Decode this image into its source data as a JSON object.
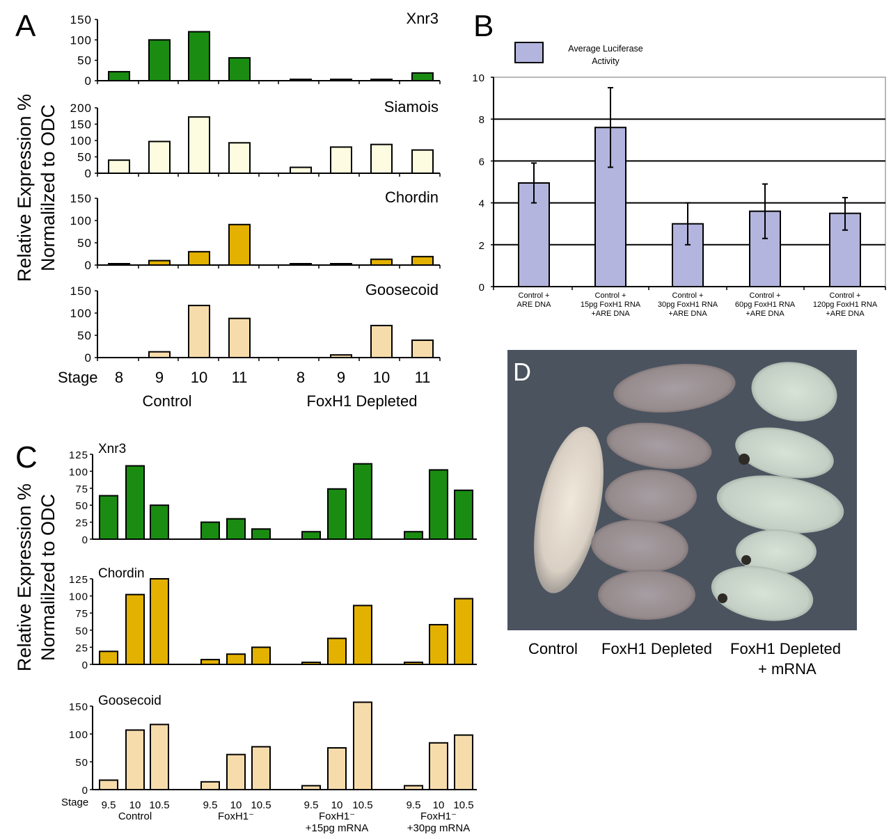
{
  "chart_data": [
    {
      "panel": "A",
      "type": "bar",
      "ylabel": "Relative Expression % Normalilzed to ODC",
      "xlabel_prefix": "Stage",
      "categories": [
        "8",
        "9",
        "10",
        "11",
        "8",
        "9",
        "10",
        "11"
      ],
      "groups": [
        "Control",
        "FoxH1 Depleted"
      ],
      "subplots": [
        {
          "title": "Xnr3",
          "color": "#1a8c12",
          "ylim": [
            0,
            150
          ],
          "yticks": [
            0,
            50,
            100,
            150
          ],
          "values": [
            22,
            100,
            120,
            56,
            2,
            2,
            2,
            19
          ]
        },
        {
          "title": "Siamois",
          "color": "#fdfce0",
          "ylim": [
            0,
            200
          ],
          "yticks": [
            0,
            50,
            100,
            150,
            200
          ],
          "values": [
            40,
            97,
            172,
            93,
            18,
            80,
            88,
            71
          ]
        },
        {
          "title": "Chordin",
          "color": "#e3b100",
          "ylim": [
            0,
            150
          ],
          "yticks": [
            0,
            50,
            100,
            150
          ],
          "values": [
            2,
            10,
            30,
            91,
            2,
            2,
            13,
            19
          ]
        },
        {
          "title": "Goosecoid",
          "color": "#f7dcab",
          "ylim": [
            0,
            150
          ],
          "yticks": [
            0,
            50,
            100,
            150
          ],
          "values": [
            0,
            13,
            117,
            88,
            0,
            6,
            72,
            39
          ]
        }
      ]
    },
    {
      "panel": "B",
      "type": "bar",
      "legend": "Average Luciferase Activity",
      "legend_placement": "top-left",
      "color": "#b3b5de",
      "ylim": [
        0,
        10
      ],
      "yticks": [
        0,
        2,
        4,
        6,
        8,
        10
      ],
      "grid": true,
      "categories": [
        [
          "Control +",
          "ARE DNA"
        ],
        [
          "Control +",
          "15pg FoxH1 RNA",
          "+ARE DNA"
        ],
        [
          "Control +",
          "30pg FoxH1 RNA",
          "+ARE DNA"
        ],
        [
          "Control +",
          "60pg FoxH1 RNA",
          "+ARE DNA"
        ],
        [
          "Control +",
          "120pg FoxH1 RNA",
          "+ARE DNA"
        ]
      ],
      "values": [
        4.95,
        7.6,
        3.0,
        3.6,
        3.5
      ],
      "error_low": [
        4.0,
        5.7,
        2.0,
        2.3,
        2.7
      ],
      "error_high": [
        5.9,
        9.5,
        4.0,
        4.9,
        4.25
      ]
    },
    {
      "panel": "C",
      "type": "bar",
      "ylabel": "Relative Expression % Normalilzed to ODC",
      "xlabel_prefix": "Stage",
      "categories": [
        "9.5",
        "10",
        "10.5",
        "9.5",
        "10",
        "10.5",
        "9.5",
        "10",
        "10.5",
        "9.5",
        "10",
        "10.5"
      ],
      "groups": [
        [
          "Control"
        ],
        [
          "FoxH1⁻"
        ],
        [
          "FoxH1⁻",
          "+15pg mRNA"
        ],
        [
          "FoxH1⁻",
          "+30pg mRNA"
        ]
      ],
      "subplots": [
        {
          "title": "Xnr3",
          "color": "#1a8c12",
          "ylim": [
            0,
            125
          ],
          "yticks": [
            0,
            25,
            50,
            75,
            100,
            125
          ],
          "values": [
            64,
            108,
            50,
            25,
            30,
            15,
            11,
            74,
            111,
            11,
            102,
            72
          ]
        },
        {
          "title": "Chordin",
          "color": "#e3b100",
          "ylim": [
            0,
            125
          ],
          "yticks": [
            0,
            25,
            50,
            75,
            100,
            125
          ],
          "values": [
            19,
            102,
            125,
            7,
            15,
            25,
            3,
            38,
            86,
            3,
            58,
            96
          ]
        },
        {
          "title": "Goosecoid",
          "color": "#f7dcab",
          "ylim": [
            0,
            150
          ],
          "yticks": [
            0,
            50,
            100,
            150
          ],
          "values": [
            17,
            107,
            117,
            14,
            63,
            77,
            7,
            75,
            157,
            7,
            84,
            98
          ]
        }
      ]
    }
  ],
  "panels": {
    "A": "A",
    "B": "B",
    "C": "C",
    "D": "D"
  },
  "photo": {
    "labels": [
      "Control",
      "FoxH1 Depleted",
      "FoxH1 Depleted",
      "+ mRNA"
    ]
  }
}
